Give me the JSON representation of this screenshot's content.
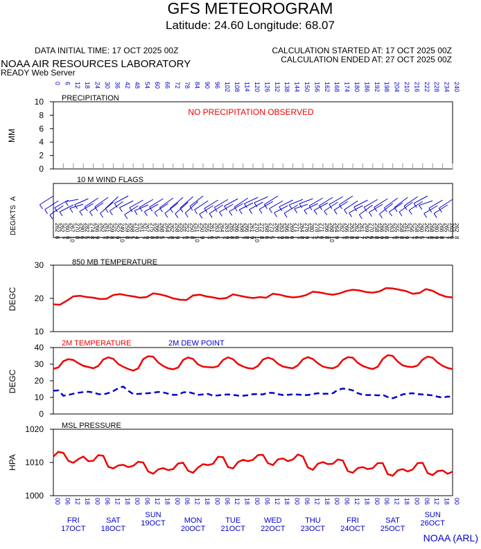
{
  "header": {
    "title": "GFS METEOROGRAM",
    "subtitle": "Latitude: 24.60 Longitude:  68.07",
    "data_initial_time": "DATA INITIAL TIME: 17 OCT 2025 00Z",
    "calc_started": "CALCULATION STARTED AT: 17 OCT 2025 00Z",
    "calc_ended": "CALCULATION ENDED AT: 27 OCT 2025 00Z",
    "lab": "NOAA AIR RESOURCES LABORATORY",
    "server": "READY Web Server",
    "credit": "NOAA (ARL)"
  },
  "colors": {
    "red": "#ee0000",
    "blue": "#0000cc",
    "black": "#000000",
    "frame": "#000000"
  },
  "days": [
    {
      "name": "FRI",
      "date": "17OCT"
    },
    {
      "name": "SAT",
      "date": "18OCT"
    },
    {
      "name": "SUN",
      "date": "19OCT"
    },
    {
      "name": "MON",
      "date": "20OCT"
    },
    {
      "name": "TUE",
      "date": "21OCT"
    },
    {
      "name": "WED",
      "date": "22OCT"
    },
    {
      "name": "THU",
      "date": "23OCT"
    },
    {
      "name": "FRI",
      "date": "24OCT"
    },
    {
      "name": "SAT",
      "date": "25OCT"
    },
    {
      "name": "SUN",
      "date": "26OCT"
    }
  ],
  "chart_data": [
    {
      "type": "bar",
      "title": "PRECIPITATION",
      "ylabel": "MM",
      "ylim": [
        0,
        10
      ],
      "yticks": [
        0,
        2,
        4,
        6,
        8,
        10
      ],
      "annotation": "NO PRECIPITATION OBSERVED",
      "x_hours_start": 0,
      "x_hours_step": 6,
      "forecast_hours": [
        "0",
        "6",
        "12",
        "18",
        "24",
        "30",
        "36",
        "42",
        "48",
        "54",
        "60",
        "66",
        "72",
        "78",
        "84",
        "90",
        "96",
        "102",
        "108",
        "114",
        "120",
        "126",
        "132",
        "138",
        "144",
        "150",
        "156",
        "162",
        "168",
        "174",
        "180",
        "186",
        "192",
        "198",
        "204",
        "210",
        "216",
        "222",
        "228",
        "234",
        "240"
      ]
    },
    {
      "type": "table",
      "title": "10 M  WIND FLAGS",
      "ylabel": "DEG/KTS",
      "ylabel2": "A",
      "x_hours_start": 0,
      "x_hours_step": 6,
      "wind_dir_deg": [
        262,
        262,
        260,
        267,
        270,
        290,
        282,
        274,
        266,
        262,
        261,
        259,
        252,
        249,
        259,
        268,
        270,
        261,
        267,
        275,
        266,
        268,
        264,
        262,
        258,
        255,
        252,
        250,
        251,
        250,
        255,
        261,
        263,
        264,
        263,
        265,
        266,
        268,
        266,
        261,
        270,
        272,
        268,
        273,
        266,
        263,
        266,
        269,
        271,
        264,
        276,
        280,
        278,
        271,
        266,
        268,
        264,
        262,
        266,
        263,
        262,
        261,
        269,
        270,
        258,
        266,
        265,
        263,
        255,
        258,
        261,
        256,
        258,
        260,
        262,
        268,
        280,
        266,
        265,
        263,
        262
      ],
      "wind_kts": [
        6,
        7,
        9,
        10,
        8,
        6,
        5,
        8,
        9,
        7,
        6,
        8,
        9,
        10,
        8,
        5,
        4,
        7,
        9,
        8,
        6,
        5,
        7,
        8,
        9,
        7,
        6,
        8,
        10,
        9,
        7,
        6,
        5,
        7,
        9,
        8,
        6,
        7,
        8,
        9,
        10,
        8,
        6,
        5,
        7,
        9,
        8,
        6,
        7,
        8,
        9,
        7,
        5,
        6,
        8,
        10,
        9,
        7,
        6,
        8,
        9,
        7,
        5,
        6,
        8,
        9,
        8,
        7,
        6,
        8,
        9,
        7,
        6,
        5,
        7,
        8,
        9,
        8,
        7,
        6,
        8
      ]
    },
    {
      "type": "line",
      "title": "850 MB  TEMPERATURE",
      "ylabel": "DEGC",
      "ylim": [
        10,
        30
      ],
      "yticks": [
        10,
        20,
        30
      ],
      "x_hours_start": 0,
      "x_hours_step": 6,
      "series": [
        {
          "name": "",
          "color": "#ee0000",
          "values": [
            18.2,
            18.1,
            19.3,
            20.6,
            20.8,
            20.4,
            20.2,
            19.8,
            19.9,
            21.0,
            21.3,
            20.9,
            20.6,
            20.2,
            20.4,
            21.5,
            21.2,
            20.7,
            20.0,
            19.6,
            19.5,
            20.9,
            21.1,
            20.6,
            20.3,
            19.9,
            20.1,
            21.2,
            20.8,
            20.4,
            20.1,
            20.4,
            20.2,
            21.4,
            21.1,
            20.6,
            20.3,
            20.5,
            21.0,
            22.0,
            21.8,
            21.4,
            21.1,
            21.5,
            22.2,
            22.6,
            22.4,
            21.9,
            21.7,
            22.1,
            23.1,
            23.0,
            22.6,
            22.2,
            21.4,
            21.6,
            22.8,
            22.3,
            21.2,
            20.5,
            20.3
          ]
        }
      ]
    },
    {
      "type": "line",
      "title": "",
      "ylabel": "DEGC",
      "ylim": [
        0,
        40
      ],
      "yticks": [
        0,
        10,
        20,
        30,
        40
      ],
      "x_hours_start": 0,
      "x_hours_step": 3,
      "legend": [
        "2M TEMPERATURE",
        "2M  DEW POINT"
      ],
      "series": [
        {
          "name": "2M TEMPERATURE",
          "color": "#ee0000",
          "values": [
            27.2,
            28.0,
            31.8,
            33.0,
            32.5,
            30.6,
            29.0,
            28.3,
            27.5,
            28.9,
            32.8,
            34.1,
            33.2,
            30.1,
            28.4,
            27.1,
            26.1,
            27.5,
            33.0,
            34.8,
            34.5,
            31.0,
            28.9,
            27.5,
            26.9,
            28.0,
            32.5,
            34.0,
            33.1,
            29.8,
            28.5,
            28.2,
            28.0,
            28.8,
            32.5,
            34.1,
            33.0,
            30.1,
            28.6,
            27.6,
            27.3,
            28.9,
            32.8,
            33.9,
            33.0,
            30.2,
            28.6,
            27.9,
            27.5,
            29.3,
            32.9,
            34.2,
            33.1,
            30.5,
            28.6,
            27.8,
            27.5,
            28.8,
            32.5,
            34.2,
            33.9,
            30.8,
            28.9,
            27.8,
            27.1,
            28.4,
            33.1,
            35.4,
            35.0,
            31.6,
            29.3,
            28.5,
            28.3,
            29.2,
            32.8,
            34.5,
            33.9,
            31.0,
            29.0,
            27.7,
            27.0
          ]
        },
        {
          "name": "2M  DEW POINT",
          "color": "#0000cc",
          "values": [
            14.0,
            14.2,
            11.0,
            11.5,
            12.2,
            12.8,
            13.2,
            13.4,
            13.0,
            12.0,
            11.8,
            12.6,
            13.8,
            15.5,
            16.5,
            14.0,
            12.0,
            12.1,
            12.3,
            12.5,
            12.8,
            13.3,
            13.0,
            12.2,
            11.5,
            11.6,
            13.0,
            13.3,
            12.4,
            11.5,
            11.8,
            12.1,
            11.0,
            11.2,
            11.6,
            11.8,
            11.5,
            11.1,
            11.0,
            11.3,
            11.9,
            12.0,
            11.8,
            12.8,
            12.7,
            11.9,
            11.4,
            11.6,
            11.8,
            11.7,
            11.4,
            11.4,
            12.0,
            12.5,
            12.2,
            12.2,
            12.5,
            14.5,
            15.3,
            15.0,
            14.2,
            12.5,
            11.6,
            11.4,
            11.5,
            11.2,
            11.5,
            10.2,
            9.5,
            10.5,
            11.8,
            12.3,
            12.5,
            11.9,
            11.8,
            11.5,
            11.2,
            10.4,
            9.8,
            10.5,
            10.2
          ]
        }
      ]
    },
    {
      "type": "line",
      "title": "MSL PRESSURE",
      "ylabel": "HPA",
      "ylim": [
        1000,
        1020
      ],
      "yticks": [
        1000,
        1010,
        1020
      ],
      "x_hours_start": 0,
      "x_hours_step": 3,
      "series": [
        {
          "name": "",
          "color": "#ee0000",
          "values": [
            1011.8,
            1013.2,
            1012.9,
            1010.5,
            1009.9,
            1011.0,
            1011.8,
            1010.4,
            1010.5,
            1012.2,
            1012.0,
            1008.7,
            1008.2,
            1009.1,
            1009.3,
            1008.6,
            1009.0,
            1010.2,
            1010.0,
            1007.3,
            1006.6,
            1007.9,
            1008.3,
            1007.7,
            1008.0,
            1009.7,
            1009.9,
            1007.5,
            1006.9,
            1008.5,
            1009.5,
            1009.2,
            1009.6,
            1011.7,
            1011.6,
            1008.6,
            1008.2,
            1010.1,
            1010.8,
            1010.4,
            1010.8,
            1012.2,
            1012.3,
            1009.8,
            1009.2,
            1010.9,
            1011.2,
            1010.4,
            1010.9,
            1012.4,
            1011.8,
            1008.5,
            1007.8,
            1009.6,
            1010.1,
            1009.5,
            1009.6,
            1010.9,
            1010.6,
            1007.4,
            1006.9,
            1008.3,
            1008.6,
            1008.0,
            1008.3,
            1009.8,
            1009.8,
            1006.5,
            1006.0,
            1007.6,
            1008.0,
            1007.3,
            1007.9,
            1009.8,
            1009.9,
            1006.8,
            1006.2,
            1007.4,
            1007.6,
            1006.6,
            1007.2
          ]
        }
      ]
    }
  ],
  "xaxis": {
    "forecast_hours": [
      "0",
      "6",
      "12",
      "18",
      "24",
      "30",
      "36",
      "42",
      "48",
      "54",
      "60",
      "66",
      "72",
      "78",
      "84",
      "90",
      "96",
      "102",
      "108",
      "114",
      "120",
      "126",
      "132",
      "138",
      "144",
      "150",
      "156",
      "162",
      "168",
      "174",
      "180",
      "186",
      "192",
      "198",
      "204",
      "210",
      "216",
      "222",
      "228",
      "234",
      "240"
    ],
    "utc_hours": [
      "00",
      "06",
      "12",
      "18",
      "00",
      "06",
      "12",
      "18",
      "00",
      "06",
      "12",
      "18",
      "00",
      "06",
      "12",
      "18",
      "00",
      "06",
      "12",
      "18",
      "00",
      "06",
      "12",
      "18",
      "00",
      "06",
      "12",
      "18",
      "00",
      "06",
      "12",
      "18",
      "00",
      "06",
      "12",
      "18",
      "00",
      "06",
      "12",
      "18",
      "00"
    ]
  }
}
